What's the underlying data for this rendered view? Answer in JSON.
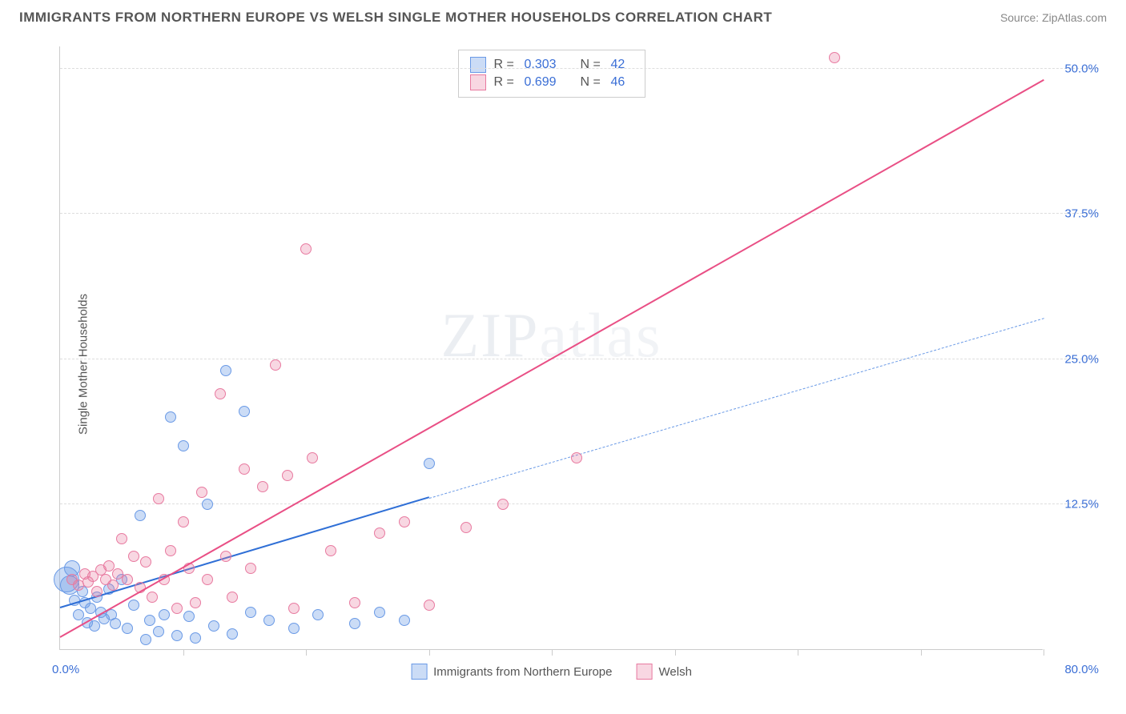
{
  "header": {
    "title": "IMMIGRANTS FROM NORTHERN EUROPE VS WELSH SINGLE MOTHER HOUSEHOLDS CORRELATION CHART",
    "source": "Source: ZipAtlas.com"
  },
  "watermark": {
    "bold": "ZIP",
    "thin": "atlas"
  },
  "chart": {
    "type": "scatter",
    "background_color": "#ffffff",
    "grid_color": "#dddddd",
    "axis_color": "#cccccc",
    "yaxis_label": "Single Mother Households",
    "label_fontsize": 15,
    "tick_fontsize": 15,
    "tick_color": "#3b6fd6",
    "xlim": [
      0,
      80
    ],
    "ylim": [
      0,
      52
    ],
    "x_origin_label": "0.0%",
    "x_max_label": "80.0%",
    "x_tick_positions": [
      10,
      20,
      30,
      40,
      50,
      60,
      70,
      80
    ],
    "y_ticks": [
      {
        "v": 12.5,
        "label": "12.5%"
      },
      {
        "v": 25.0,
        "label": "25.0%"
      },
      {
        "v": 37.5,
        "label": "37.5%"
      },
      {
        "v": 50.0,
        "label": "50.0%"
      }
    ],
    "series": [
      {
        "id": "northern_europe",
        "label": "Immigrants from Northern Europe",
        "color_stroke": "#6a9ae6",
        "color_fill": "rgba(106,154,230,0.35)",
        "marker_radius": 7,
        "marker_stroke_width": 1.5,
        "R": "0.303",
        "N": "42",
        "trend": {
          "solid": {
            "x1": 0,
            "y1": 3.5,
            "x2": 30,
            "y2": 13.0,
            "color": "#2f6fd6",
            "width": 2.5
          },
          "dash": {
            "x1": 30,
            "y1": 13.0,
            "x2": 80,
            "y2": 28.5,
            "color": "#6a9ae6",
            "width": 1.8
          }
        },
        "points": [
          {
            "x": 0.5,
            "y": 6.0,
            "r": 16
          },
          {
            "x": 0.8,
            "y": 5.5,
            "r": 12
          },
          {
            "x": 1.0,
            "y": 7.0,
            "r": 10
          },
          {
            "x": 1.2,
            "y": 4.2
          },
          {
            "x": 1.5,
            "y": 3.0
          },
          {
            "x": 1.8,
            "y": 5.0
          },
          {
            "x": 2.0,
            "y": 4.0
          },
          {
            "x": 2.2,
            "y": 2.3
          },
          {
            "x": 2.5,
            "y": 3.5
          },
          {
            "x": 2.8,
            "y": 2.0
          },
          {
            "x": 3.0,
            "y": 4.5
          },
          {
            "x": 3.3,
            "y": 3.2
          },
          {
            "x": 3.6,
            "y": 2.6
          },
          {
            "x": 4.0,
            "y": 5.2
          },
          {
            "x": 4.2,
            "y": 3.0
          },
          {
            "x": 4.5,
            "y": 2.2
          },
          {
            "x": 5.0,
            "y": 6.0
          },
          {
            "x": 5.5,
            "y": 1.8
          },
          {
            "x": 6.0,
            "y": 3.8
          },
          {
            "x": 6.5,
            "y": 11.5
          },
          {
            "x": 7.0,
            "y": 0.8
          },
          {
            "x": 7.3,
            "y": 2.5
          },
          {
            "x": 8.0,
            "y": 1.5
          },
          {
            "x": 8.5,
            "y": 3.0
          },
          {
            "x": 9.0,
            "y": 20.0
          },
          {
            "x": 9.5,
            "y": 1.2
          },
          {
            "x": 10.0,
            "y": 17.5
          },
          {
            "x": 10.5,
            "y": 2.8
          },
          {
            "x": 11.0,
            "y": 1.0
          },
          {
            "x": 12.0,
            "y": 12.5
          },
          {
            "x": 12.5,
            "y": 2.0
          },
          {
            "x": 13.5,
            "y": 24.0
          },
          {
            "x": 14.0,
            "y": 1.3
          },
          {
            "x": 15.0,
            "y": 20.5
          },
          {
            "x": 15.5,
            "y": 3.2
          },
          {
            "x": 17.0,
            "y": 2.5
          },
          {
            "x": 19.0,
            "y": 1.8
          },
          {
            "x": 21.0,
            "y": 3.0
          },
          {
            "x": 24.0,
            "y": 2.2
          },
          {
            "x": 26.0,
            "y": 3.2
          },
          {
            "x": 28.0,
            "y": 2.5
          },
          {
            "x": 30.0,
            "y": 16.0
          }
        ]
      },
      {
        "id": "welsh",
        "label": "Welsh",
        "color_stroke": "#e87aa0",
        "color_fill": "rgba(232,122,160,0.30)",
        "marker_radius": 7,
        "marker_stroke_width": 1.5,
        "R": "0.699",
        "N": "46",
        "trend": {
          "solid": {
            "x1": 0,
            "y1": 1.0,
            "x2": 80,
            "y2": 49.0,
            "color": "#e94f85",
            "width": 2.5
          }
        },
        "points": [
          {
            "x": 1.0,
            "y": 6.0
          },
          {
            "x": 1.5,
            "y": 5.5
          },
          {
            "x": 2.0,
            "y": 6.5
          },
          {
            "x": 2.3,
            "y": 5.8
          },
          {
            "x": 2.7,
            "y": 6.3
          },
          {
            "x": 3.0,
            "y": 5.0
          },
          {
            "x": 3.3,
            "y": 6.8
          },
          {
            "x": 3.7,
            "y": 6.0
          },
          {
            "x": 4.0,
            "y": 7.2
          },
          {
            "x": 4.3,
            "y": 5.5
          },
          {
            "x": 4.7,
            "y": 6.5
          },
          {
            "x": 5.0,
            "y": 9.5
          },
          {
            "x": 5.5,
            "y": 6.0
          },
          {
            "x": 6.0,
            "y": 8.0
          },
          {
            "x": 6.5,
            "y": 5.3
          },
          {
            "x": 7.0,
            "y": 7.5
          },
          {
            "x": 7.5,
            "y": 4.5
          },
          {
            "x": 8.0,
            "y": 13.0
          },
          {
            "x": 8.5,
            "y": 6.0
          },
          {
            "x": 9.0,
            "y": 8.5
          },
          {
            "x": 9.5,
            "y": 3.5
          },
          {
            "x": 10.0,
            "y": 11.0
          },
          {
            "x": 10.5,
            "y": 7.0
          },
          {
            "x": 11.0,
            "y": 4.0
          },
          {
            "x": 11.5,
            "y": 13.5
          },
          {
            "x": 12.0,
            "y": 6.0
          },
          {
            "x": 13.0,
            "y": 22.0
          },
          {
            "x": 13.5,
            "y": 8.0
          },
          {
            "x": 14.0,
            "y": 4.5
          },
          {
            "x": 15.0,
            "y": 15.5
          },
          {
            "x": 15.5,
            "y": 7.0
          },
          {
            "x": 16.5,
            "y": 14.0
          },
          {
            "x": 17.5,
            "y": 24.5
          },
          {
            "x": 18.5,
            "y": 15.0
          },
          {
            "x": 19.0,
            "y": 3.5
          },
          {
            "x": 20.0,
            "y": 34.5
          },
          {
            "x": 20.5,
            "y": 16.5
          },
          {
            "x": 22.0,
            "y": 8.5
          },
          {
            "x": 24.0,
            "y": 4.0
          },
          {
            "x": 26.0,
            "y": 10.0
          },
          {
            "x": 28.0,
            "y": 11.0
          },
          {
            "x": 30.0,
            "y": 3.8
          },
          {
            "x": 33.0,
            "y": 10.5
          },
          {
            "x": 36.0,
            "y": 12.5
          },
          {
            "x": 42.0,
            "y": 16.5
          },
          {
            "x": 63.0,
            "y": 51.0
          }
        ]
      }
    ],
    "legend_top": {
      "border_color": "#cccccc",
      "r_label": "R =",
      "n_label": "N ="
    },
    "legend_bottom_items": [
      {
        "series": 0
      },
      {
        "series": 1
      }
    ]
  }
}
